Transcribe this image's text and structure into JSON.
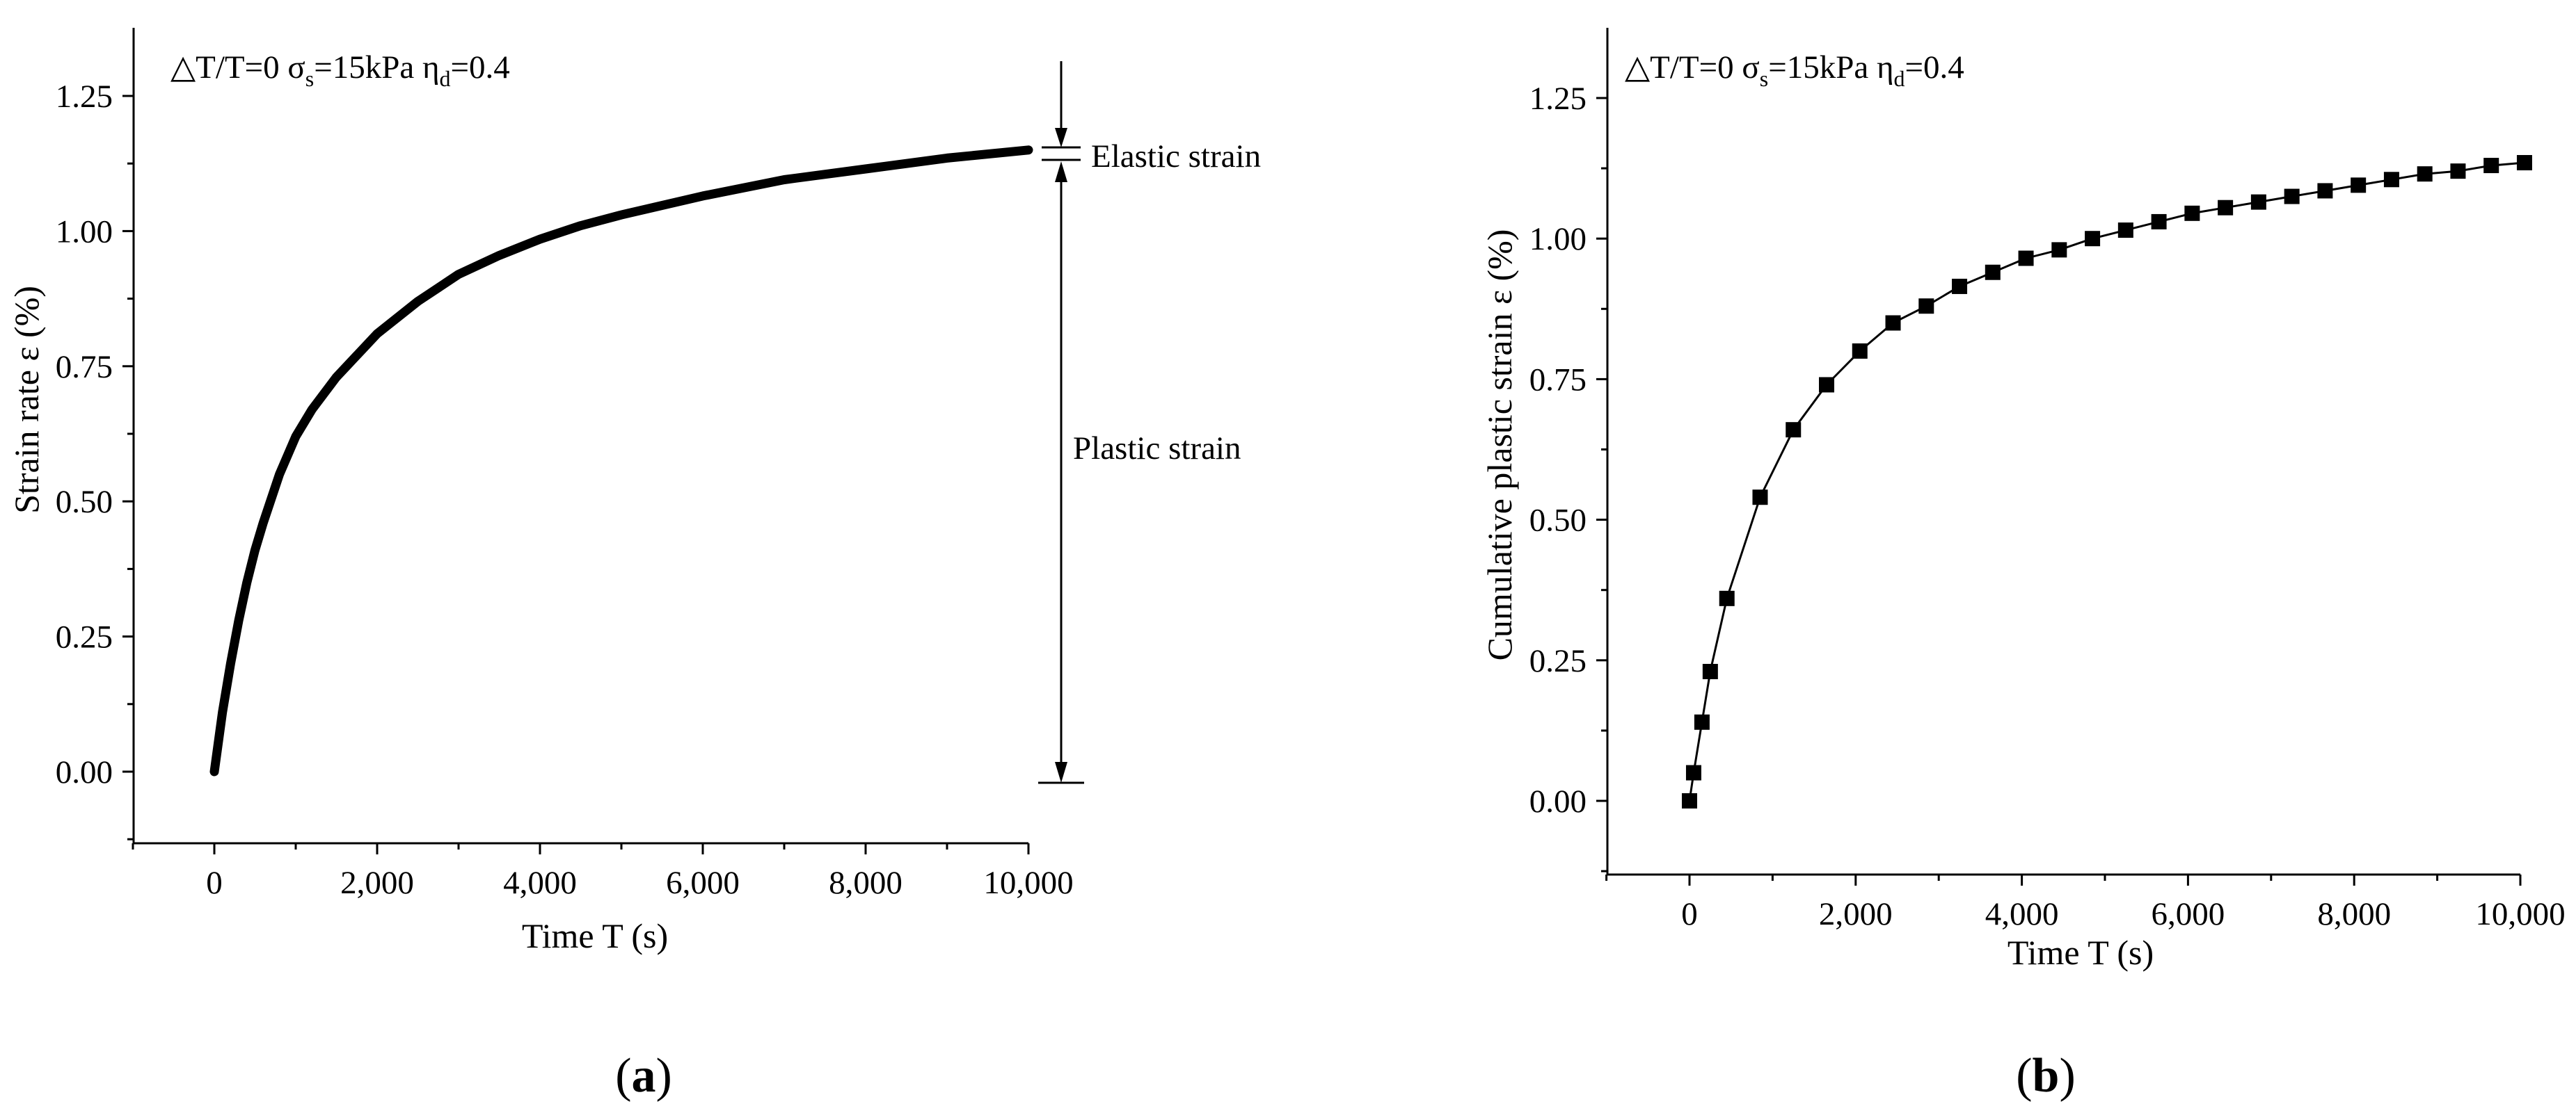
{
  "chart_data": [
    {
      "id": "a",
      "type": "line",
      "panel_label": "a",
      "annotation": {
        "prefix": "△T/T=0 ",
        "sigma": "σ",
        "sigma_sub": "s",
        "sigma_value": "=15kPa ",
        "eta": "η",
        "eta_sub": "d",
        "eta_value": "=0.4"
      },
      "xlabel": "Time  T (s)",
      "ylabel": "Strain rate ε (%)",
      "xlim": [
        -1000,
        10000
      ],
      "ylim": [
        -0.13,
        1.37
      ],
      "xticks": [
        0,
        2000,
        4000,
        6000,
        8000,
        10000
      ],
      "xtick_labels": [
        "0",
        "2,000",
        "4,000",
        "6,000",
        "8,000",
        "10,000"
      ],
      "yticks": [
        0,
        0.25,
        0.5,
        0.75,
        1.0,
        1.25
      ],
      "ytick_labels": [
        "0.00",
        "0.25",
        "0.50",
        "0.75",
        "1.00",
        "1.25"
      ],
      "series": [
        {
          "name": "strain",
          "x": [
            0,
            100,
            200,
            300,
            400,
            500,
            600,
            800,
            1000,
            1200,
            1500,
            2000,
            2500,
            3000,
            3500,
            4000,
            4500,
            5000,
            6000,
            7000,
            8000,
            9000,
            10000
          ],
          "values": [
            0.0,
            0.11,
            0.2,
            0.28,
            0.35,
            0.41,
            0.46,
            0.55,
            0.62,
            0.67,
            0.73,
            0.81,
            0.87,
            0.92,
            0.955,
            0.985,
            1.01,
            1.03,
            1.065,
            1.095,
            1.115,
            1.135,
            1.15
          ]
        }
      ],
      "markers": {
        "elastic_strain": {
          "label": "Elastic strain",
          "from": 1.14,
          "to": 1.165
        },
        "plastic_strain": {
          "label": "Plastic strain",
          "from": -0.02,
          "to": 1.14
        }
      }
    },
    {
      "id": "b",
      "type": "line",
      "panel_label": "b",
      "annotation": {
        "prefix": "△T/T=0 ",
        "sigma": "σ",
        "sigma_sub": "s",
        "sigma_value": "=15kPa ",
        "eta": "η",
        "eta_sub": "d",
        "eta_value": "=0.4"
      },
      "xlabel": "Time T (s)",
      "ylabel": "Cumulative plastic strain ε (%)",
      "xlim": [
        -1000,
        10000
      ],
      "ylim": [
        -0.13,
        1.37
      ],
      "xticks": [
        0,
        2000,
        4000,
        6000,
        8000,
        10000
      ],
      "xtick_labels": [
        "0",
        "2,000",
        "4,000",
        "6,000",
        "8,000",
        "10,000"
      ],
      "yticks": [
        0,
        0.25,
        0.5,
        0.75,
        1.0,
        1.25
      ],
      "ytick_labels": [
        "0.00",
        "0.25",
        "0.50",
        "0.75",
        "1.00",
        "1.25"
      ],
      "series": [
        {
          "name": "cumulative plastic strain",
          "x": [
            0,
            50,
            150,
            250,
            450,
            850,
            1250,
            1650,
            2050,
            2450,
            2850,
            3250,
            3650,
            4050,
            4450,
            4850,
            5250,
            5650,
            6050,
            6450,
            6850,
            7250,
            7650,
            8050,
            8450,
            8850,
            9250,
            9650,
            10050
          ],
          "values": [
            0.0,
            0.05,
            0.14,
            0.23,
            0.36,
            0.54,
            0.66,
            0.74,
            0.8,
            0.85,
            0.88,
            0.915,
            0.94,
            0.965,
            0.98,
            1.0,
            1.015,
            1.03,
            1.045,
            1.055,
            1.065,
            1.075,
            1.085,
            1.095,
            1.105,
            1.115,
            1.12,
            1.13,
            1.135
          ]
        }
      ]
    }
  ]
}
